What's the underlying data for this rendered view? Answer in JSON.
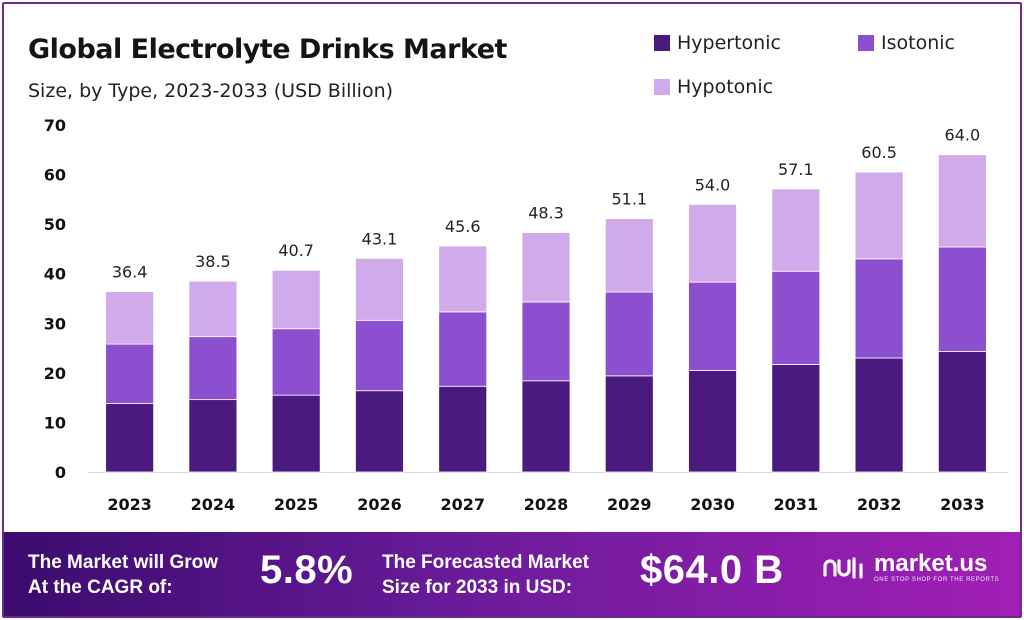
{
  "header": {
    "title": "Global Electrolyte Drinks Market",
    "subtitle": "Size, by Type, 2023-2033 (USD Billion)"
  },
  "colors": {
    "hypertonic": "#4a1a7e",
    "isotonic": "#8c4fd0",
    "hypotonic": "#d1aaec",
    "grid": "#d9d9d9",
    "banner_start": "#3b0b6e",
    "banner_end": "#a21fb5"
  },
  "chart_data": {
    "type": "bar",
    "stacked": true,
    "title": "Global Electrolyte Drinks Market",
    "subtitle": "Size, by Type, 2023-2033 (USD Billion)",
    "categories": [
      "2023",
      "2024",
      "2025",
      "2026",
      "2027",
      "2028",
      "2029",
      "2030",
      "2031",
      "2032",
      "2033"
    ],
    "series": [
      {
        "name": "Hypertonic",
        "values": [
          13.8,
          14.6,
          15.5,
          16.4,
          17.3,
          18.4,
          19.4,
          20.5,
          21.7,
          23.0,
          24.3
        ]
      },
      {
        "name": "Isotonic",
        "values": [
          12.0,
          12.7,
          13.4,
          14.2,
          15.0,
          15.9,
          16.9,
          17.8,
          18.8,
          20.0,
          21.1
        ]
      },
      {
        "name": "Hypotonic",
        "values": [
          10.6,
          11.2,
          11.8,
          12.5,
          13.3,
          14.0,
          14.8,
          15.7,
          16.6,
          17.5,
          18.6
        ]
      }
    ],
    "totals": [
      "36.4",
      "38.5",
      "40.7",
      "43.1",
      "45.6",
      "48.3",
      "51.1",
      "54.0",
      "57.1",
      "60.5",
      "64.0"
    ],
    "y_ticks": [
      "0",
      "10",
      "20",
      "30",
      "40",
      "50",
      "60",
      "70"
    ],
    "ylim": [
      0,
      70
    ],
    "grid": false,
    "legend": "top-right"
  },
  "banner": {
    "cagr_label_line1": "The Market will Grow",
    "cagr_label_line2": "At the CAGR of:",
    "cagr_value": "5.8%",
    "forecast_label_line1": "The Forecasted Market",
    "forecast_label_line2": "Size for 2033 in USD:",
    "forecast_value": "$64.0 B",
    "logo_name": "market.us",
    "logo_tagline": "ONE STOP SHOP FOR THE REPORTS"
  }
}
